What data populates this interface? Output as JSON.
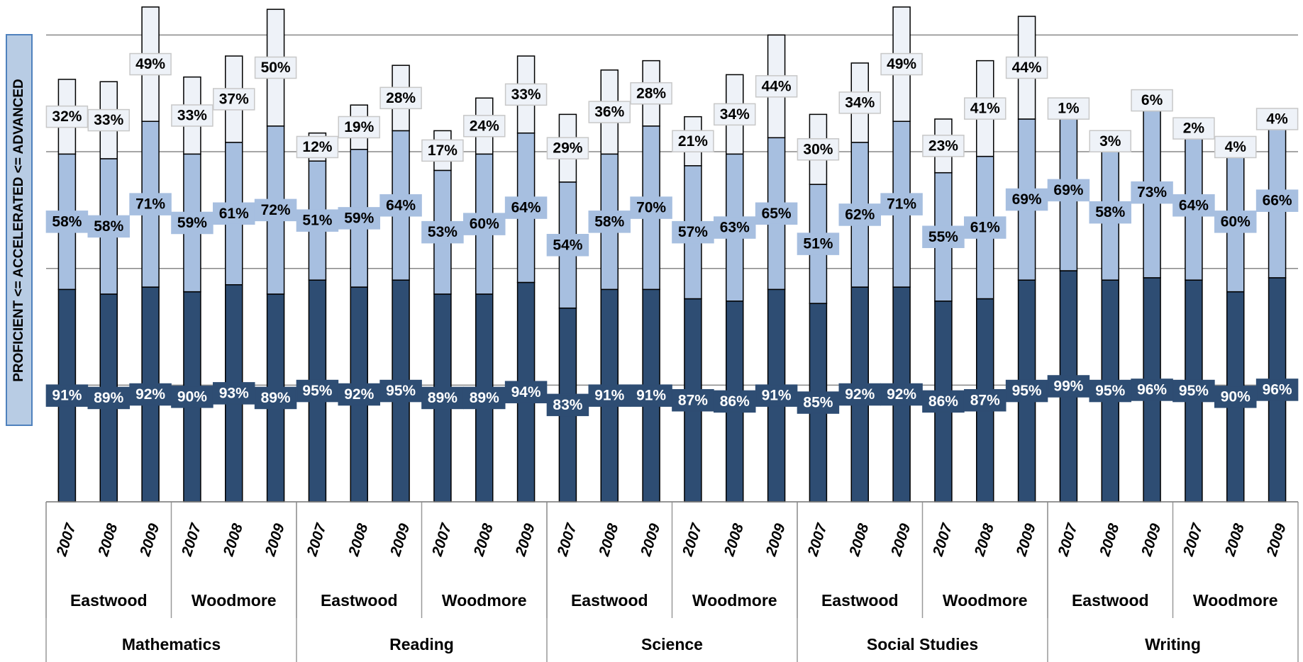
{
  "chart_data": {
    "type": "stacked-bar",
    "y_label": "PROFICIENT <= ACCELERATED <= ADVANCED",
    "categories": [
      "2007",
      "2008",
      "2009",
      "2007",
      "2008",
      "2009",
      "2007",
      "2008",
      "2009",
      "2007",
      "2008",
      "2009",
      "2007",
      "2008",
      "2009",
      "2007",
      "2008",
      "2009",
      "2007",
      "2008",
      "2009",
      "2007",
      "2008",
      "2009",
      "2007",
      "2008",
      "2009",
      "2007",
      "2008",
      "2009"
    ],
    "schools": [
      "Eastwood",
      "Woodmore",
      "Eastwood",
      "Woodmore",
      "Eastwood",
      "Woodmore",
      "Eastwood",
      "Woodmore",
      "Eastwood",
      "Woodmore"
    ],
    "subjects": [
      "Mathematics",
      "Reading",
      "Science",
      "Social Studies",
      "Writing"
    ],
    "series": [
      {
        "color": "#2e4d73",
        "values": [
          91,
          89,
          92,
          90,
          93,
          89,
          95,
          92,
          95,
          89,
          89,
          94,
          83,
          91,
          91,
          87,
          86,
          91,
          85,
          92,
          92,
          86,
          87,
          95,
          99,
          95,
          96,
          95,
          90,
          96
        ],
        "value_labels": [
          "91%",
          "89%",
          "92%",
          "90%",
          "93%",
          "89%",
          "95%",
          "92%",
          "95%",
          "89%",
          "89%",
          "94%",
          "83%",
          "91%",
          "91%",
          "87%",
          "86%",
          "91%",
          "85%",
          "92%",
          "92%",
          "86%",
          "87%",
          "95%",
          "99%",
          "95%",
          "96%",
          "95%",
          "90%",
          "96%"
        ]
      },
      {
        "color": "#a7bfe0",
        "values": [
          58,
          58,
          71,
          59,
          61,
          72,
          51,
          59,
          64,
          53,
          60,
          64,
          54,
          58,
          70,
          57,
          63,
          65,
          51,
          62,
          71,
          55,
          61,
          69,
          69,
          58,
          73,
          64,
          60,
          66
        ],
        "value_labels": [
          "58%",
          "58%",
          "71%",
          "59%",
          "61%",
          "72%",
          "51%",
          "59%",
          "64%",
          "53%",
          "60%",
          "64%",
          "54%",
          "58%",
          "70%",
          "57%",
          "63%",
          "65%",
          "51%",
          "62%",
          "71%",
          "55%",
          "61%",
          "69%",
          "69%",
          "58%",
          "73%",
          "64%",
          "60%",
          "66%"
        ]
      },
      {
        "color": "#eef2f8",
        "values": [
          32,
          33,
          49,
          33,
          37,
          50,
          12,
          19,
          28,
          17,
          24,
          33,
          29,
          36,
          28,
          21,
          34,
          44,
          30,
          34,
          49,
          23,
          41,
          44,
          1,
          3,
          6,
          2,
          4,
          4
        ],
        "value_labels": [
          "32%",
          "33%",
          "49%",
          "33%",
          "37%",
          "50%",
          "12%",
          "19%",
          "28%",
          "17%",
          "24%",
          "33%",
          "29%",
          "36%",
          "28%",
          "21%",
          "34%",
          "44%",
          "30%",
          "34%",
          "49%",
          "23%",
          "41%",
          "44%",
          "1%",
          "3%",
          "6%",
          "2%",
          "4%",
          "4%"
        ]
      }
    ],
    "ylim": [
      0,
      215
    ],
    "yticks": [
      0,
      50,
      100,
      150,
      200
    ],
    "grid": true
  }
}
